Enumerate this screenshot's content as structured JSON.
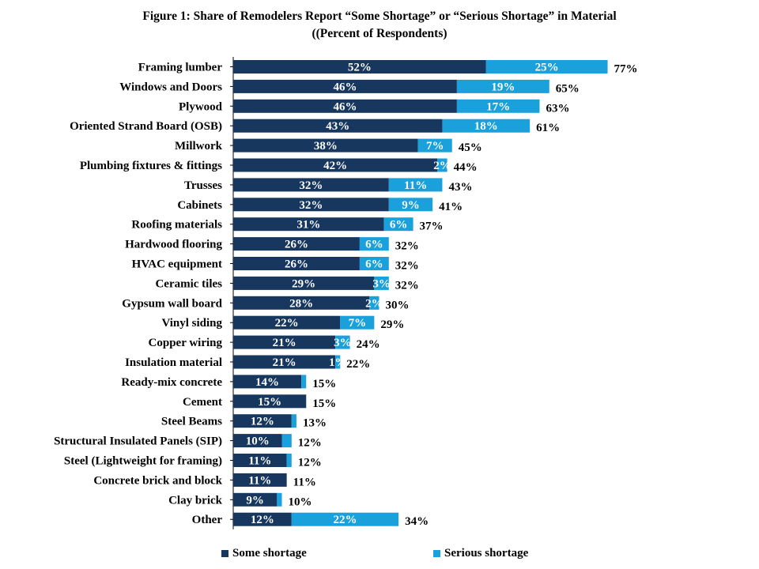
{
  "title": "Figure 1: Share of Remodelers Report “Some Shortage” or “Serious Shortage” in Material",
  "subtitle": "((Percent of Respondents)",
  "colors": {
    "some": "#17375e",
    "serious": "#1aa1dc"
  },
  "legend": {
    "some_label": "Some shortage",
    "serious_label": "Serious shortage"
  },
  "chart_data": {
    "type": "bar",
    "orientation": "horizontal",
    "stacked": true,
    "title": "Figure 1: Share of Remodelers Report “Some Shortage” or “Serious Shortage” in Material",
    "subtitle": "((Percent of Respondents)",
    "categories": [
      "Framing lumber",
      "Windows and Doors",
      "Plywood",
      "Oriented Strand Board (OSB)",
      "Millwork",
      "Plumbing fixtures & fittings",
      "Trusses",
      "Cabinets",
      "Roofing materials",
      "Hardwood flooring",
      "HVAC equipment",
      "Ceramic tiles",
      "Gypsum wall board",
      "Vinyl siding",
      "Copper wiring",
      "Insulation material",
      "Ready-mix concrete",
      "Cement",
      "Steel Beams",
      "Structural Insulated Panels (SIP)",
      "Steel (Lightweight for framing)",
      "Concrete brick and block",
      "Clay brick",
      "Other"
    ],
    "series": [
      {
        "name": "Some shortage",
        "values": [
          52,
          46,
          46,
          43,
          38,
          42,
          32,
          32,
          31,
          26,
          26,
          29,
          28,
          22,
          21,
          21,
          14,
          15,
          12,
          10,
          11,
          11,
          9,
          12
        ]
      },
      {
        "name": "Serious shortage",
        "values": [
          25,
          19,
          17,
          18,
          7,
          2,
          11,
          9,
          6,
          6,
          6,
          3,
          2,
          7,
          3,
          1,
          1,
          0,
          1,
          2,
          1,
          0,
          1,
          22
        ]
      }
    ],
    "totals": [
      77,
      65,
      63,
      61,
      45,
      44,
      43,
      41,
      37,
      32,
      32,
      32,
      30,
      29,
      24,
      22,
      15,
      15,
      13,
      12,
      12,
      11,
      10,
      34
    ],
    "some_labels": [
      "52%",
      "46%",
      "46%",
      "43%",
      "38%",
      "42%",
      "32%",
      "32%",
      "31%",
      "26%",
      "26%",
      "29%",
      "28%",
      "22%",
      "21%",
      "21%",
      "14%",
      "15%",
      "12%",
      "10%",
      "11%",
      "11%",
      "9%",
      "12%"
    ],
    "serious_labels": [
      "25%",
      "19%",
      "17%",
      "18%",
      "7%",
      "2%",
      "11%",
      "9%",
      "6%",
      "6%",
      "6%",
      "3%",
      "2%",
      "7%",
      "3%",
      "1%",
      "",
      "",
      "",
      "",
      "",
      "",
      "",
      "22%"
    ],
    "total_labels": [
      "77%",
      "65%",
      "63%",
      "61%",
      "45%",
      "44%",
      "43%",
      "41%",
      "37%",
      "32%",
      "32%",
      "32%",
      "30%",
      "29%",
      "24%",
      "22%",
      "15%",
      "15%",
      "13%",
      "12%",
      "12%",
      "11%",
      "10%",
      "34%"
    ],
    "xlim": [
      0,
      100
    ],
    "grid": false,
    "legend_position": "bottom"
  }
}
